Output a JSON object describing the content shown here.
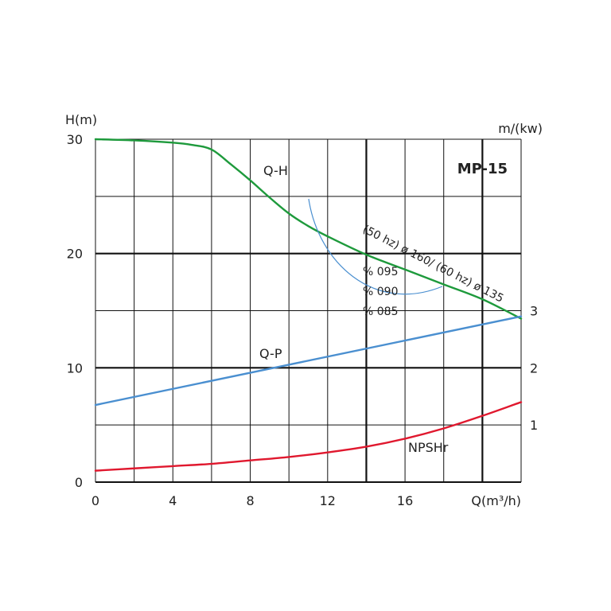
{
  "chart_data": {
    "type": "line",
    "title": "MP-15",
    "xlabel": "Q(m³/h)",
    "ylabel_left": "H(m)",
    "ylabel_right": "m/(kw)",
    "xlim": [
      0,
      22
    ],
    "ylim_left": [
      0,
      30
    ],
    "ylim_right": [
      0,
      6
    ],
    "x_ticks": [
      0,
      4,
      8,
      12,
      16
    ],
    "y_left_ticks": [
      0,
      10,
      20,
      30
    ],
    "y_right_ticks": [
      1,
      2,
      3
    ],
    "grid": true,
    "series": [
      {
        "name": "Q-H",
        "axis": "left",
        "color": "#1e9a3c",
        "x": [
          0,
          2,
          4,
          5,
          6,
          7,
          8,
          9,
          10,
          11,
          12,
          14,
          16,
          18,
          20,
          22
        ],
        "y": [
          30,
          29.9,
          29.7,
          29.5,
          29.1,
          27.8,
          26.4,
          24.9,
          23.5,
          22.4,
          21.5,
          19.9,
          18.6,
          17.3,
          16.0,
          14.3
        ]
      },
      {
        "name": "Q-P",
        "axis": "right",
        "color": "#4a8fd0",
        "x": [
          0,
          22
        ],
        "y": [
          1.35,
          2.9
        ]
      },
      {
        "name": "NPSHr",
        "axis": "left",
        "color": "#e0182e",
        "x": [
          0,
          2,
          4,
          6,
          8,
          10,
          12,
          14,
          16,
          18,
          20,
          22
        ],
        "y": [
          1.0,
          1.2,
          1.4,
          1.6,
          1.9,
          2.2,
          2.6,
          3.1,
          3.8,
          4.7,
          5.8,
          7.0
        ]
      }
    ],
    "efficiency_labels": [
      "% 095",
      "% 090",
      "% 085"
    ],
    "rated_label": "(50 hz) ø 160/ (60 hz) ø 135"
  }
}
